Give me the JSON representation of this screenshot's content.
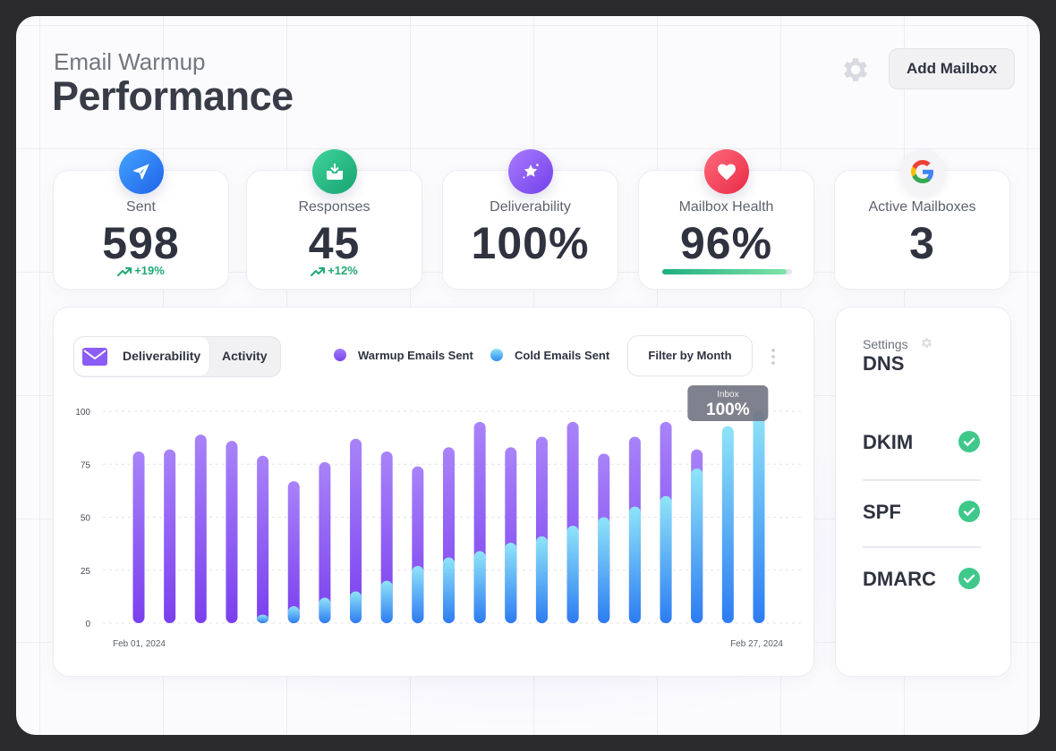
{
  "header": {
    "subtitle": "Email Warmup",
    "title": "Performance",
    "add_mailbox_label": "Add Mailbox"
  },
  "stats": [
    {
      "label": "Sent",
      "value": "598",
      "trend": "+19%",
      "icon": "paper-plane-icon",
      "color": "#2f7df6"
    },
    {
      "label": "Responses",
      "value": "45",
      "trend": "+12%",
      "icon": "inbox-download-icon",
      "color": "#22b07d"
    },
    {
      "label": "Deliverability",
      "value": "100%",
      "icon": "sparkle-star-icon",
      "color": "#8e5cf7"
    },
    {
      "label": "Mailbox Health",
      "value": "96%",
      "progress": 0.96,
      "icon": "heart-icon",
      "color": "#f0435a"
    },
    {
      "label": "Active Mailboxes",
      "value": "3",
      "icon": "google-icon"
    }
  ],
  "chart_controls": {
    "tabs": [
      {
        "label": "Deliverability",
        "active": true
      },
      {
        "label": "Activity",
        "active": false
      }
    ],
    "filter_label": "Filter by Month"
  },
  "chart_data": {
    "type": "bar",
    "stacked": true,
    "series": [
      {
        "name": "Warmup Emails Sent",
        "color": "#8b5cf6",
        "values": [
          81,
          82,
          89,
          86,
          75,
          59,
          64,
          72,
          61,
          47,
          52,
          61,
          45,
          47,
          49,
          30,
          33,
          35,
          9,
          0,
          0
        ]
      },
      {
        "name": "Cold Emails Sent",
        "color": "#3b82f6",
        "values": [
          0,
          0,
          0,
          0,
          4,
          8,
          12,
          15,
          20,
          27,
          31,
          34,
          38,
          41,
          46,
          50,
          55,
          60,
          73,
          93,
          100
        ]
      }
    ],
    "ylim": [
      0,
      100
    ],
    "yticks": [
      0,
      25,
      50,
      75,
      100
    ],
    "x_start_label": "Feb 01, 2024",
    "x_end_label": "Feb 27, 2024",
    "tooltip": {
      "label": "Inbox",
      "value": "100%",
      "bar_index": 19
    }
  },
  "dns": {
    "settings_label": "Settings",
    "title": "DNS",
    "records": [
      {
        "label": "DKIM",
        "status": "ok"
      },
      {
        "label": "SPF",
        "status": "ok"
      },
      {
        "label": "DMARC",
        "status": "ok"
      }
    ]
  }
}
